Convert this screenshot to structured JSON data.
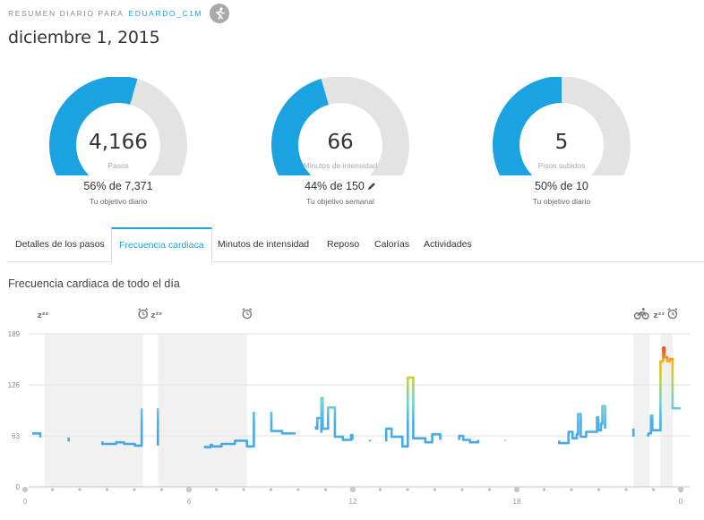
{
  "header": {
    "label": "RESUMEN DIARIO PARA",
    "username": "EDUARDO_C1M",
    "avatar_icon": "runner-icon"
  },
  "date": "diciembre 1, 2015",
  "gauges": [
    {
      "id": "steps",
      "value": "4,166",
      "label": "Pasos",
      "goal_text": "56% de 7,371",
      "goal_sub": "Tu objetivo diario",
      "percent": 56,
      "editable": false
    },
    {
      "id": "intensity",
      "value": "66",
      "label": "Minutos de intensidad",
      "goal_text": "44% de 150",
      "goal_sub": "Tu objetivo semanal",
      "percent": 44,
      "editable": true
    },
    {
      "id": "floors",
      "value": "5",
      "label": "Pisos subidos",
      "goal_text": "50% de 10",
      "goal_sub": "Tu objetivo diario",
      "percent": 50,
      "editable": false
    }
  ],
  "colors": {
    "accent": "#1aa3e0",
    "gauge_track": "#e3e3e3",
    "line": "#48a9e6"
  },
  "tabs": [
    {
      "id": "steps-details",
      "label": "Detalles de los pasos",
      "active": false
    },
    {
      "id": "heart-rate",
      "label": "Frecuencia cardiaca",
      "active": true
    },
    {
      "id": "intensity-minutes",
      "label": "Minutos de intensidad",
      "active": false
    },
    {
      "id": "rest",
      "label": "Reposo",
      "active": false
    },
    {
      "id": "calories",
      "label": "Calorías",
      "active": false
    },
    {
      "id": "activities",
      "label": "Actividades",
      "active": false
    }
  ],
  "section_title": "Frecuencia cardiaca de todo el día",
  "chart_data": {
    "type": "line",
    "title": "",
    "xlabel": "",
    "ylabel": "",
    "x_ticks": [
      "0",
      "6",
      "12",
      "18",
      "0"
    ],
    "y_ticks": [
      0,
      63,
      126,
      189
    ],
    "ylim": [
      0,
      189
    ],
    "xlim": [
      0,
      24
    ],
    "grid": true,
    "sleep_bands": [
      [
        0.45,
        4.1
      ],
      [
        4.65,
        7.95
      ],
      [
        22.25,
        22.85
      ],
      [
        23.25,
        23.7
      ]
    ],
    "event_markers": [
      {
        "type": "sleep",
        "x": 0.45
      },
      {
        "type": "alarm",
        "x": 4.1
      },
      {
        "type": "sleep",
        "x": 4.65
      },
      {
        "type": "alarm",
        "x": 7.95
      },
      {
        "type": "bike",
        "x": 22.55
      },
      {
        "type": "sleep",
        "x": 23.25
      },
      {
        "type": "alarm",
        "x": 23.7
      }
    ],
    "series": [
      {
        "values": [
          [
            0,
            66
          ],
          [
            0.3,
            66
          ],
          [
            0.3,
            61
          ],
          [
            1.35,
            61
          ],
          [
            1.35,
            56
          ],
          [
            2.6,
            56
          ],
          [
            2.6,
            53
          ],
          [
            3.1,
            53
          ],
          [
            3.1,
            55
          ],
          [
            3.4,
            55
          ],
          [
            3.4,
            53
          ],
          [
            3.8,
            53
          ],
          [
            3.8,
            51
          ],
          [
            4.05,
            51
          ],
          [
            4.05,
            97
          ],
          [
            4.65,
            97
          ],
          [
            4.65,
            51
          ],
          [
            6.4,
            51
          ],
          [
            6.4,
            49
          ],
          [
            6.6,
            49
          ],
          [
            6.6,
            52
          ],
          [
            6.65,
            52
          ],
          [
            6.65,
            50
          ],
          [
            7.0,
            50
          ],
          [
            7.0,
            53
          ],
          [
            7.5,
            53
          ],
          [
            7.5,
            57
          ],
          [
            7.95,
            57
          ],
          [
            7.95,
            50
          ],
          [
            8.2,
            50
          ],
          [
            8.2,
            93
          ],
          [
            8.85,
            93
          ],
          [
            8.85,
            69
          ],
          [
            9.25,
            69
          ],
          [
            9.25,
            66
          ],
          [
            9.75,
            66
          ],
          [
            10.5,
            75
          ],
          [
            10.5,
            72
          ],
          [
            10.55,
            72
          ],
          [
            10.55,
            85
          ],
          [
            10.7,
            85
          ],
          [
            10.7,
            68
          ],
          [
            10.7,
            110
          ],
          [
            10.75,
            110
          ],
          [
            10.75,
            72
          ],
          [
            10.95,
            72
          ],
          [
            10.95,
            98
          ],
          [
            11.2,
            98
          ],
          [
            11.2,
            62
          ],
          [
            11.5,
            62
          ],
          [
            11.5,
            58
          ],
          [
            11.8,
            58
          ],
          [
            11.8,
            64
          ],
          [
            11.85,
            64
          ],
          [
            11.85,
            58
          ],
          [
            12.5,
            58
          ],
          [
            12.5,
            56
          ],
          [
            13.1,
            56
          ],
          [
            13.1,
            72
          ],
          [
            13.3,
            72
          ],
          [
            13.3,
            62
          ],
          [
            13.7,
            62
          ],
          [
            13.7,
            50
          ],
          [
            13.9,
            50
          ],
          [
            13.9,
            135
          ],
          [
            14.1,
            135
          ],
          [
            14.1,
            60
          ],
          [
            14.55,
            60
          ],
          [
            14.55,
            55
          ],
          [
            14.8,
            55
          ],
          [
            14.8,
            65
          ],
          [
            15.1,
            65
          ],
          [
            15.1,
            58
          ],
          [
            15.8,
            58
          ],
          [
            15.8,
            63
          ],
          [
            15.95,
            63
          ],
          [
            15.95,
            58
          ],
          [
            16.2,
            58
          ],
          [
            16.2,
            55
          ],
          [
            16.5,
            55
          ],
          [
            16.5,
            58
          ],
          [
            17.5,
            58
          ],
          [
            17.5,
            57
          ],
          [
            19.5,
            57
          ],
          [
            19.5,
            54
          ],
          [
            19.85,
            54
          ],
          [
            19.85,
            68
          ],
          [
            20.0,
            68
          ],
          [
            20.0,
            60
          ],
          [
            20.15,
            60
          ],
          [
            20.15,
            65
          ],
          [
            20.2,
            65
          ],
          [
            20.2,
            90
          ],
          [
            20.3,
            90
          ],
          [
            20.3,
            62
          ],
          [
            20.5,
            62
          ],
          [
            20.5,
            68
          ],
          [
            20.9,
            68
          ],
          [
            20.9,
            86
          ],
          [
            20.95,
            86
          ],
          [
            20.95,
            70
          ],
          [
            21.05,
            70
          ],
          [
            21.05,
            78
          ],
          [
            21.1,
            78
          ],
          [
            21.1,
            100
          ],
          [
            21.2,
            100
          ],
          [
            21.2,
            72
          ],
          [
            22.25,
            72
          ],
          [
            22.25,
            62
          ],
          [
            22.8,
            62
          ],
          [
            22.8,
            66
          ],
          [
            22.9,
            66
          ],
          [
            22.9,
            88
          ],
          [
            22.95,
            88
          ],
          [
            22.95,
            70
          ],
          [
            23.25,
            70
          ],
          [
            23.25,
            155
          ],
          [
            23.35,
            155
          ],
          [
            23.35,
            172
          ],
          [
            23.4,
            172
          ],
          [
            23.4,
            160
          ],
          [
            23.5,
            160
          ],
          [
            23.5,
            155
          ],
          [
            23.6,
            155
          ],
          [
            23.6,
            158
          ],
          [
            23.7,
            158
          ],
          [
            23.7,
            97
          ],
          [
            24,
            97
          ]
        ]
      }
    ]
  }
}
